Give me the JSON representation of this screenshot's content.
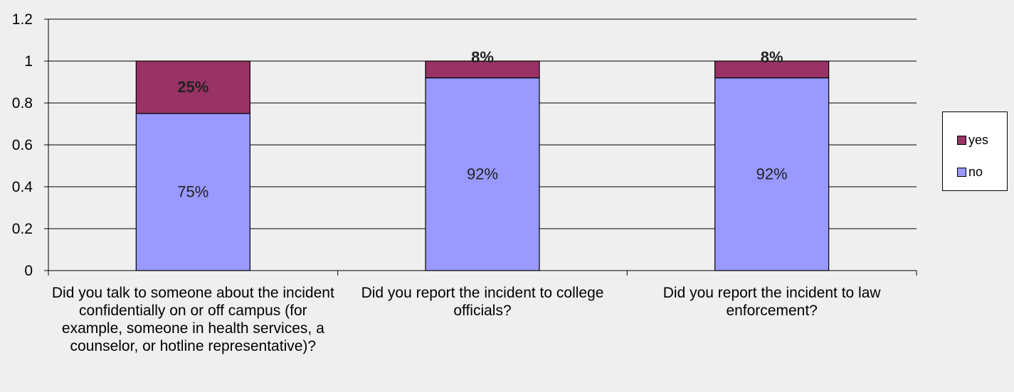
{
  "chart_data": {
    "type": "bar",
    "stacked": true,
    "title": "",
    "xlabel": "",
    "ylabel": "",
    "ylim": [
      0,
      1.2
    ],
    "yticks": [
      0,
      0.2,
      0.4,
      0.6,
      0.8,
      1,
      1.2
    ],
    "ytick_labels": [
      "0",
      "0.2",
      "0.4",
      "0.6",
      "0.8",
      "1",
      "1.2"
    ],
    "grid": true,
    "legend_position": "right",
    "categories": [
      "Did you talk to someone about the incident confidentially on or off campus (for example, someone in health services, a counselor, or hotline representative)?",
      "Did you report the incident to college officials?",
      "Did you report the incident to law enforcement?"
    ],
    "series": [
      {
        "name": "no",
        "color": "#9999ff",
        "values": [
          0.75,
          0.92,
          0.92
        ],
        "data_labels": [
          "75%",
          "92%",
          "92%"
        ]
      },
      {
        "name": "yes",
        "color": "#993366",
        "values": [
          0.25,
          0.08,
          0.08
        ],
        "data_labels": [
          "25%",
          "8%",
          "8%"
        ]
      }
    ],
    "legend": [
      "yes",
      "no"
    ]
  }
}
